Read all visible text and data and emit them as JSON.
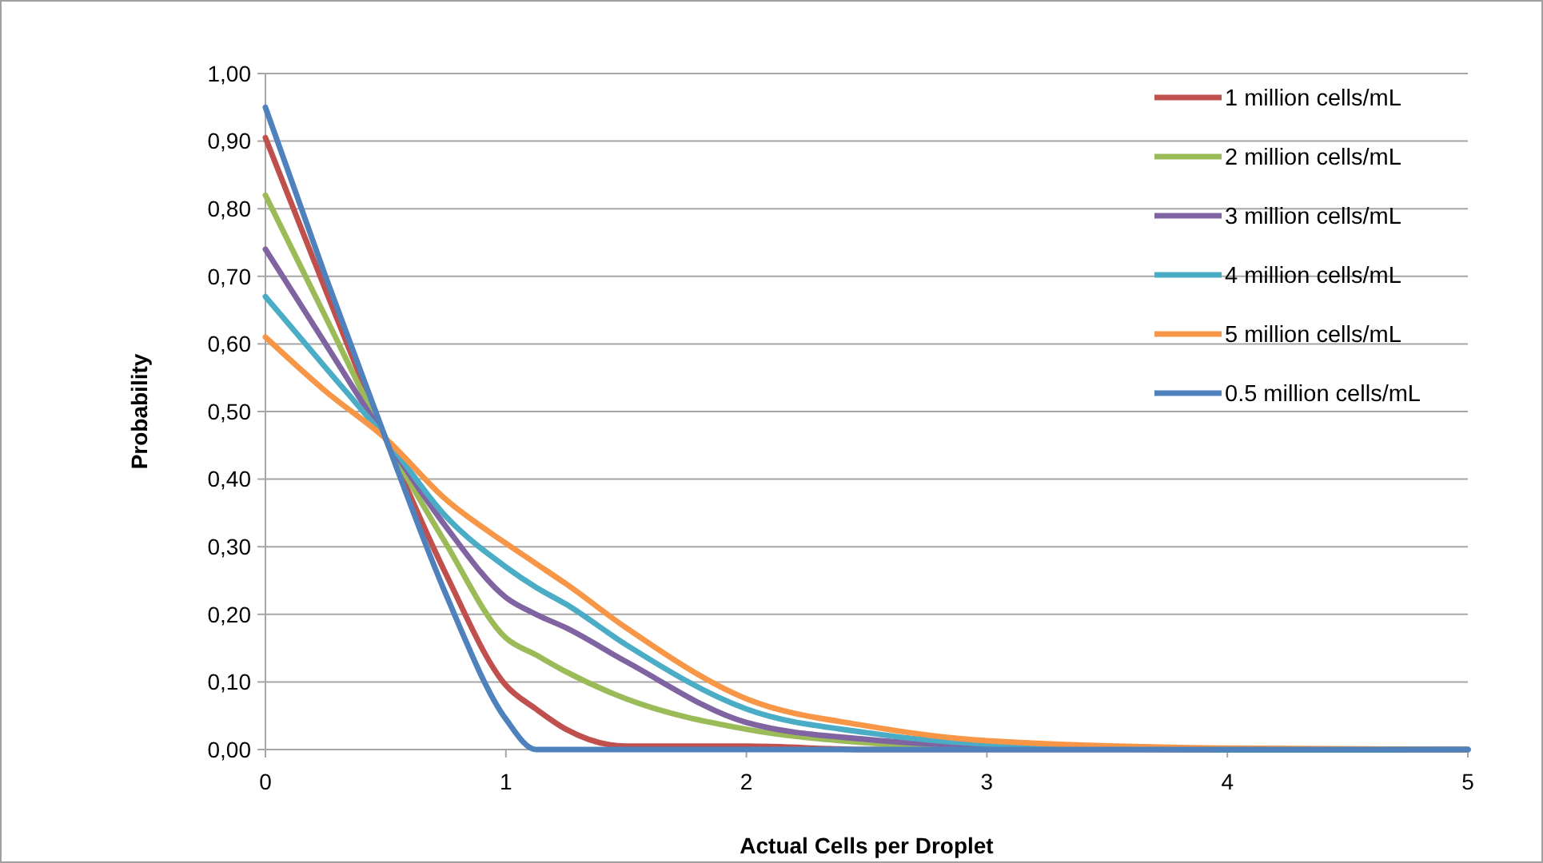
{
  "chart_data": {
    "type": "line",
    "xlabel": "Actual Cells per Droplet",
    "ylabel": "Probability",
    "x": [
      0,
      0.25,
      0.5,
      0.75,
      1,
      1.125,
      1.25,
      1.5,
      2,
      2.5,
      3,
      4,
      5
    ],
    "series": [
      {
        "name": "1 million cells/mL",
        "color": "#c0504d",
        "values": [
          0.905,
          0.68,
          0.46,
          0.26,
          0.095,
          0.06,
          0.03,
          0.005,
          0.005,
          0,
          0,
          0,
          0
        ]
      },
      {
        "name": "2 million cells/mL",
        "color": "#9bbb59",
        "values": [
          0.82,
          0.64,
          0.46,
          0.305,
          0.165,
          0.14,
          0.115,
          0.075,
          0.03,
          0.01,
          0.002,
          0,
          0
        ]
      },
      {
        "name": "3 million cells/mL",
        "color": "#8064a2",
        "values": [
          0.74,
          0.6,
          0.46,
          0.33,
          0.225,
          0.2,
          0.18,
          0.13,
          0.04,
          0.015,
          0.005,
          0,
          0
        ]
      },
      {
        "name": "4 million cells/mL",
        "color": "#4bacc6",
        "values": [
          0.67,
          0.565,
          0.46,
          0.345,
          0.27,
          0.24,
          0.215,
          0.155,
          0.06,
          0.025,
          0.008,
          0,
          0
        ]
      },
      {
        "name": "5 million cells/mL",
        "color": "#f79646",
        "values": [
          0.61,
          0.53,
          0.46,
          0.37,
          0.305,
          0.275,
          0.245,
          0.18,
          0.075,
          0.035,
          0.013,
          0.002,
          0
        ]
      },
      {
        "name": "0.5 million cells/mL",
        "color": "#4f81bd",
        "values": [
          0.95,
          0.7,
          0.46,
          0.23,
          0.045,
          0,
          0,
          0,
          0,
          0,
          0,
          0,
          0
        ]
      }
    ],
    "xlim": [
      0,
      5
    ],
    "xticks": [
      0,
      1,
      2,
      3,
      4,
      5
    ],
    "ylim": [
      0,
      1
    ],
    "yticks": [
      {
        "value": 0,
        "label": "0,00"
      },
      {
        "value": 0.1,
        "label": "0,10"
      },
      {
        "value": 0.2,
        "label": "0,20"
      },
      {
        "value": 0.3,
        "label": "0,30"
      },
      {
        "value": 0.4,
        "label": "0,40"
      },
      {
        "value": 0.5,
        "label": "0,50"
      },
      {
        "value": 0.6,
        "label": "0,60"
      },
      {
        "value": 0.7,
        "label": "0,70"
      },
      {
        "value": 0.8,
        "label": "0,80"
      },
      {
        "value": 0.9,
        "label": "0,90"
      },
      {
        "value": 1,
        "label": "1,00"
      }
    ],
    "grid": "y",
    "legend": "top right",
    "marker": "none",
    "line_style": "solid"
  }
}
